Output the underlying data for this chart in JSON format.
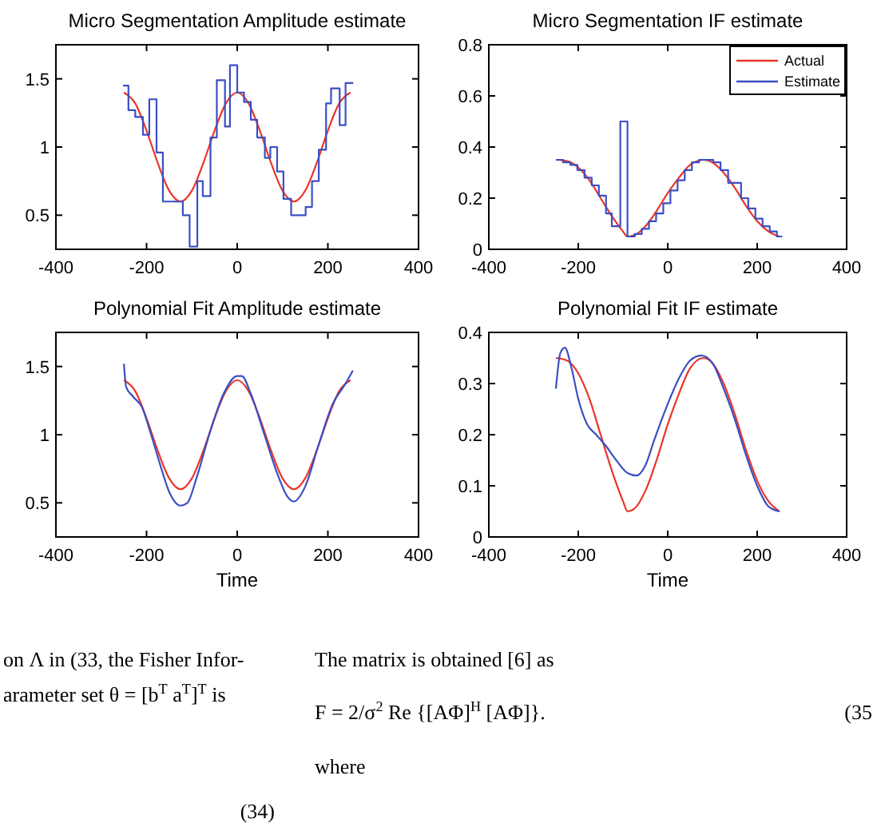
{
  "chart_data": [
    {
      "type": "line",
      "title": "Micro Segmentation Amplitude estimate",
      "xlim": [
        -400,
        400
      ],
      "xticks": [
        -400,
        -200,
        0,
        200,
        400
      ],
      "ylim": [
        0.25,
        1.75
      ],
      "yticks": [
        0.5,
        1,
        1.5
      ],
      "series": [
        {
          "color": "#e8352a",
          "x": [
            -250,
            -225,
            -200,
            -175,
            -150,
            -125,
            -100,
            -75,
            -50,
            -25,
            0,
            25,
            50,
            75,
            100,
            125,
            150,
            175,
            200,
            225,
            250
          ],
          "values": [
            1.4,
            1.32,
            1.12,
            0.88,
            0.68,
            0.6,
            0.68,
            0.88,
            1.12,
            1.32,
            1.4,
            1.32,
            1.12,
            0.88,
            0.68,
            0.6,
            0.68,
            0.88,
            1.12,
            1.32,
            1.4
          ]
        },
        {
          "type": "step",
          "color": "#3a4fc4",
          "x": [
            -252,
            -240,
            -225,
            -208,
            -194,
            -178,
            -164,
            -120,
            -105,
            -88,
            -76,
            -59,
            -45,
            -27,
            -16,
            0,
            15,
            30,
            44,
            61,
            73,
            88,
            102,
            119,
            151,
            165,
            180,
            196,
            207,
            226,
            239,
            256
          ],
          "values": [
            1.45,
            1.27,
            1.22,
            1.09,
            1.35,
            0.96,
            0.6,
            0.5,
            0.27,
            0.75,
            0.64,
            1.07,
            1.49,
            1.15,
            1.6,
            1.4,
            1.33,
            1.2,
            1.07,
            0.92,
            1.0,
            0.82,
            0.62,
            0.5,
            0.56,
            0.75,
            0.98,
            1.32,
            1.43,
            1.16,
            1.47,
            1.47
          ]
        }
      ]
    },
    {
      "type": "line",
      "title": "Micro Segmentation IF estimate",
      "xlim": [
        -400,
        400
      ],
      "xticks": [
        -400,
        -200,
        0,
        200,
        400
      ],
      "ylim": [
        0,
        0.8
      ],
      "yticks": [
        0,
        0.2,
        0.4,
        0.6,
        0.8
      ],
      "legend": "top right",
      "series": [
        {
          "name": "Actual",
          "color": "#e8352a",
          "x": [
            -250,
            -225,
            -200,
            -175,
            -150,
            -125,
            -100,
            -90,
            -75,
            -50,
            -25,
            0,
            25,
            50,
            80,
            100,
            125,
            150,
            175,
            200,
            225,
            250
          ],
          "values": [
            0.35,
            0.345,
            0.32,
            0.27,
            0.2,
            0.13,
            0.07,
            0.05,
            0.055,
            0.09,
            0.15,
            0.22,
            0.28,
            0.33,
            0.35,
            0.34,
            0.3,
            0.24,
            0.17,
            0.11,
            0.07,
            0.05
          ]
        },
        {
          "name": "Estimate",
          "type": "step",
          "color": "#3a4fc4",
          "x": [
            -250,
            -234,
            -218,
            -202,
            -186,
            -170,
            -154,
            -138,
            -125,
            -106,
            -90,
            -74,
            -58,
            -42,
            -26,
            -10,
            6,
            22,
            38,
            54,
            70,
            86,
            102,
            118,
            135,
            164,
            180,
            196,
            212,
            228,
            244,
            256
          ],
          "values": [
            0.35,
            0.34,
            0.33,
            0.31,
            0.28,
            0.25,
            0.21,
            0.14,
            0.09,
            0.5,
            0.05,
            0.06,
            0.08,
            0.11,
            0.14,
            0.18,
            0.23,
            0.27,
            0.31,
            0.34,
            0.35,
            0.35,
            0.34,
            0.31,
            0.26,
            0.2,
            0.16,
            0.12,
            0.09,
            0.07,
            0.05,
            0.05
          ]
        }
      ]
    },
    {
      "type": "line",
      "title": "Polynomial Fit Amplitude estimate",
      "xlabel": "Time",
      "xlim": [
        -400,
        400
      ],
      "xticks": [
        -400,
        -200,
        0,
        200,
        400
      ],
      "ylim": [
        0.25,
        1.75
      ],
      "yticks": [
        0.5,
        1,
        1.5
      ],
      "series": [
        {
          "color": "#e8352a",
          "x": [
            -250,
            -225,
            -200,
            -175,
            -150,
            -125,
            -100,
            -75,
            -50,
            -25,
            0,
            25,
            50,
            75,
            100,
            125,
            150,
            175,
            200,
            225,
            250
          ],
          "values": [
            1.4,
            1.32,
            1.12,
            0.88,
            0.68,
            0.6,
            0.68,
            0.88,
            1.12,
            1.32,
            1.4,
            1.32,
            1.12,
            0.88,
            0.68,
            0.6,
            0.68,
            0.88,
            1.12,
            1.32,
            1.4
          ]
        },
        {
          "color": "#3a4fc4",
          "x": [
            -250,
            -245,
            -230,
            -210,
            -190,
            -170,
            -150,
            -125,
            -110,
            -90,
            -60,
            -30,
            0,
            10,
            30,
            60,
            90,
            110,
            125,
            150,
            180,
            210,
            240,
            255
          ],
          "values": [
            1.52,
            1.35,
            1.28,
            1.2,
            1.0,
            0.78,
            0.58,
            0.48,
            0.5,
            0.68,
            1.02,
            1.3,
            1.43,
            1.43,
            1.3,
            1.0,
            0.7,
            0.55,
            0.51,
            0.62,
            0.93,
            1.22,
            1.38,
            1.47
          ]
        }
      ]
    },
    {
      "type": "line",
      "title": "Polynomial Fit IF estimate",
      "xlabel": "Time",
      "xlim": [
        -400,
        400
      ],
      "xticks": [
        -400,
        -200,
        0,
        200,
        400
      ],
      "ylim": [
        0,
        0.4
      ],
      "yticks": [
        0,
        0.1,
        0.2,
        0.3,
        0.4
      ],
      "series": [
        {
          "color": "#e8352a",
          "x": [
            -250,
            -225,
            -200,
            -175,
            -150,
            -125,
            -100,
            -90,
            -75,
            -50,
            -25,
            0,
            25,
            50,
            80,
            100,
            125,
            150,
            175,
            200,
            225,
            250
          ],
          "values": [
            0.35,
            0.345,
            0.32,
            0.27,
            0.2,
            0.13,
            0.07,
            0.05,
            0.055,
            0.09,
            0.15,
            0.22,
            0.28,
            0.33,
            0.35,
            0.34,
            0.3,
            0.24,
            0.17,
            0.11,
            0.07,
            0.05
          ]
        },
        {
          "color": "#3a4fc4",
          "x": [
            -250,
            -240,
            -230,
            -215,
            -200,
            -180,
            -160,
            -140,
            -115,
            -90,
            -70,
            -50,
            -30,
            0,
            25,
            50,
            75,
            100,
            125,
            150,
            175,
            200,
            225,
            250
          ],
          "values": [
            0.29,
            0.36,
            0.37,
            0.33,
            0.27,
            0.22,
            0.2,
            0.18,
            0.15,
            0.125,
            0.12,
            0.14,
            0.19,
            0.26,
            0.31,
            0.345,
            0.355,
            0.34,
            0.29,
            0.23,
            0.16,
            0.1,
            0.06,
            0.05
          ]
        }
      ]
    },
    {
      "type": "other",
      "annotations": [
        "on Λ in (33, the Fisher Infor-",
        "arameter set θ = [b$^{T}$ a$^{T}$]$^{T}$ is",
        "(34)",
        "The matrix is obtained [6] as",
        "F = 2/σ$^{2}$ Re {[AΦ]$^{H}$ [AΦ]}.",
        "(35",
        "where"
      ]
    }
  ]
}
